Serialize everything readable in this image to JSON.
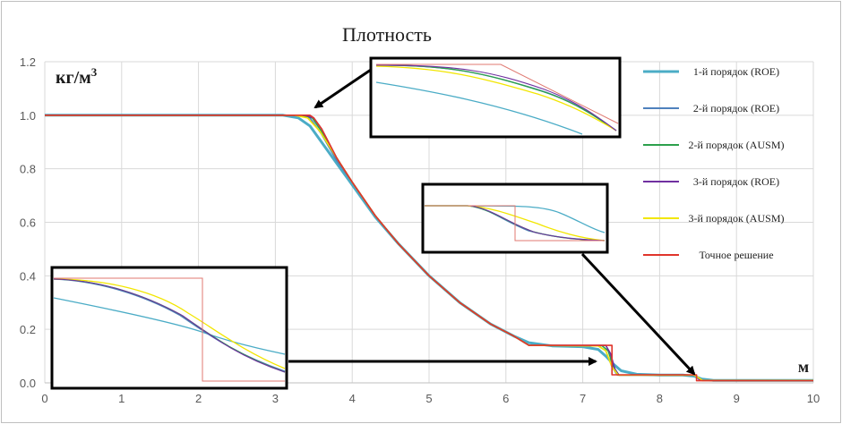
{
  "chart_data": {
    "type": "line",
    "title": "Плотность",
    "y_unit": "кг/м",
    "y_unit_sup": "3",
    "x_unit": "м",
    "xlim": [
      0,
      10
    ],
    "ylim": [
      0,
      1.2
    ],
    "x_ticks": [
      "0",
      "1",
      "2",
      "3",
      "4",
      "5",
      "6",
      "7",
      "8",
      "9",
      "10"
    ],
    "y_ticks": [
      "0.0",
      "0.2",
      "0.4",
      "0.6",
      "0.8",
      "1.0",
      "1.2"
    ],
    "grid": true,
    "legend_position": "right",
    "series": [
      {
        "name": "1-й порядок (ROE)",
        "color": "#4bacc6",
        "x": [
          0,
          3.1,
          3.3,
          3.45,
          3.6,
          3.8,
          4.0,
          4.3,
          4.6,
          5.0,
          5.4,
          5.8,
          6.1,
          6.3,
          6.6,
          7.0,
          7.2,
          7.3,
          7.4,
          7.5,
          7.7,
          8.0,
          8.3,
          8.45,
          8.55,
          8.7,
          10
        ],
        "y": [
          1.0,
          1.0,
          0.99,
          0.96,
          0.9,
          0.82,
          0.74,
          0.62,
          0.52,
          0.4,
          0.3,
          0.22,
          0.175,
          0.15,
          0.138,
          0.135,
          0.125,
          0.1,
          0.07,
          0.045,
          0.032,
          0.029,
          0.029,
          0.025,
          0.014,
          0.009,
          0.009
        ]
      },
      {
        "name": "2-й порядок (ROE)",
        "color": "#4f81bd",
        "x": [
          0,
          3.3,
          3.45,
          3.6,
          3.8,
          4.0,
          4.3,
          4.6,
          5.0,
          5.4,
          5.8,
          6.1,
          6.3,
          7.2,
          7.3,
          7.38,
          7.45,
          8.45,
          8.5,
          8.55,
          10
        ],
        "y": [
          1.0,
          1.0,
          0.99,
          0.93,
          0.83,
          0.75,
          0.625,
          0.52,
          0.4,
          0.3,
          0.22,
          0.175,
          0.14,
          0.138,
          0.12,
          0.06,
          0.029,
          0.029,
          0.02,
          0.009,
          0.009
        ]
      },
      {
        "name": "2-й порядок (AUSM)",
        "color": "#2ca04c",
        "x": [
          0,
          3.35,
          3.48,
          3.6,
          3.8,
          4.0,
          4.3,
          4.6,
          5.0,
          5.4,
          5.8,
          6.1,
          6.3,
          7.25,
          7.33,
          7.4,
          7.47,
          8.45,
          8.5,
          8.55,
          10
        ],
        "y": [
          1.0,
          1.0,
          0.99,
          0.94,
          0.84,
          0.75,
          0.625,
          0.52,
          0.4,
          0.3,
          0.22,
          0.175,
          0.14,
          0.139,
          0.12,
          0.06,
          0.029,
          0.029,
          0.02,
          0.009,
          0.009
        ]
      },
      {
        "name": "3-й порядок (ROE)",
        "color": "#7030a0",
        "x": [
          0,
          3.38,
          3.5,
          3.6,
          3.8,
          4.0,
          4.3,
          4.6,
          5.0,
          5.4,
          5.8,
          6.1,
          6.3,
          7.3,
          7.36,
          7.42,
          7.47,
          8.47,
          8.52,
          10
        ],
        "y": [
          1.0,
          1.0,
          0.99,
          0.95,
          0.84,
          0.75,
          0.625,
          0.52,
          0.4,
          0.3,
          0.22,
          0.175,
          0.14,
          0.14,
          0.11,
          0.05,
          0.029,
          0.029,
          0.01,
          0.009
        ]
      },
      {
        "name": "3-й порядок (AUSM)",
        "color": "#f2e600",
        "x": [
          0,
          3.25,
          3.42,
          3.58,
          3.8,
          4.0,
          4.3,
          4.6,
          5.0,
          5.4,
          5.8,
          6.1,
          6.3,
          7.2,
          7.3,
          7.38,
          7.46,
          8.45,
          8.5,
          8.56,
          10
        ],
        "y": [
          1.0,
          1.0,
          0.99,
          0.94,
          0.84,
          0.75,
          0.625,
          0.52,
          0.4,
          0.3,
          0.22,
          0.175,
          0.14,
          0.138,
          0.12,
          0.06,
          0.029,
          0.029,
          0.02,
          0.009,
          0.009
        ]
      },
      {
        "name": "Точное решение",
        "color": "#e0352b",
        "x": [
          0,
          3.45,
          3.5,
          3.6,
          3.8,
          4.0,
          4.3,
          4.6,
          5.0,
          5.4,
          5.8,
          6.1,
          6.3,
          7.38,
          7.38,
          8.48,
          8.48,
          10
        ],
        "y": [
          1.0,
          1.0,
          0.99,
          0.95,
          0.84,
          0.75,
          0.625,
          0.52,
          0.4,
          0.3,
          0.22,
          0.175,
          0.14,
          0.14,
          0.03,
          0.03,
          0.008,
          0.008
        ]
      }
    ]
  }
}
